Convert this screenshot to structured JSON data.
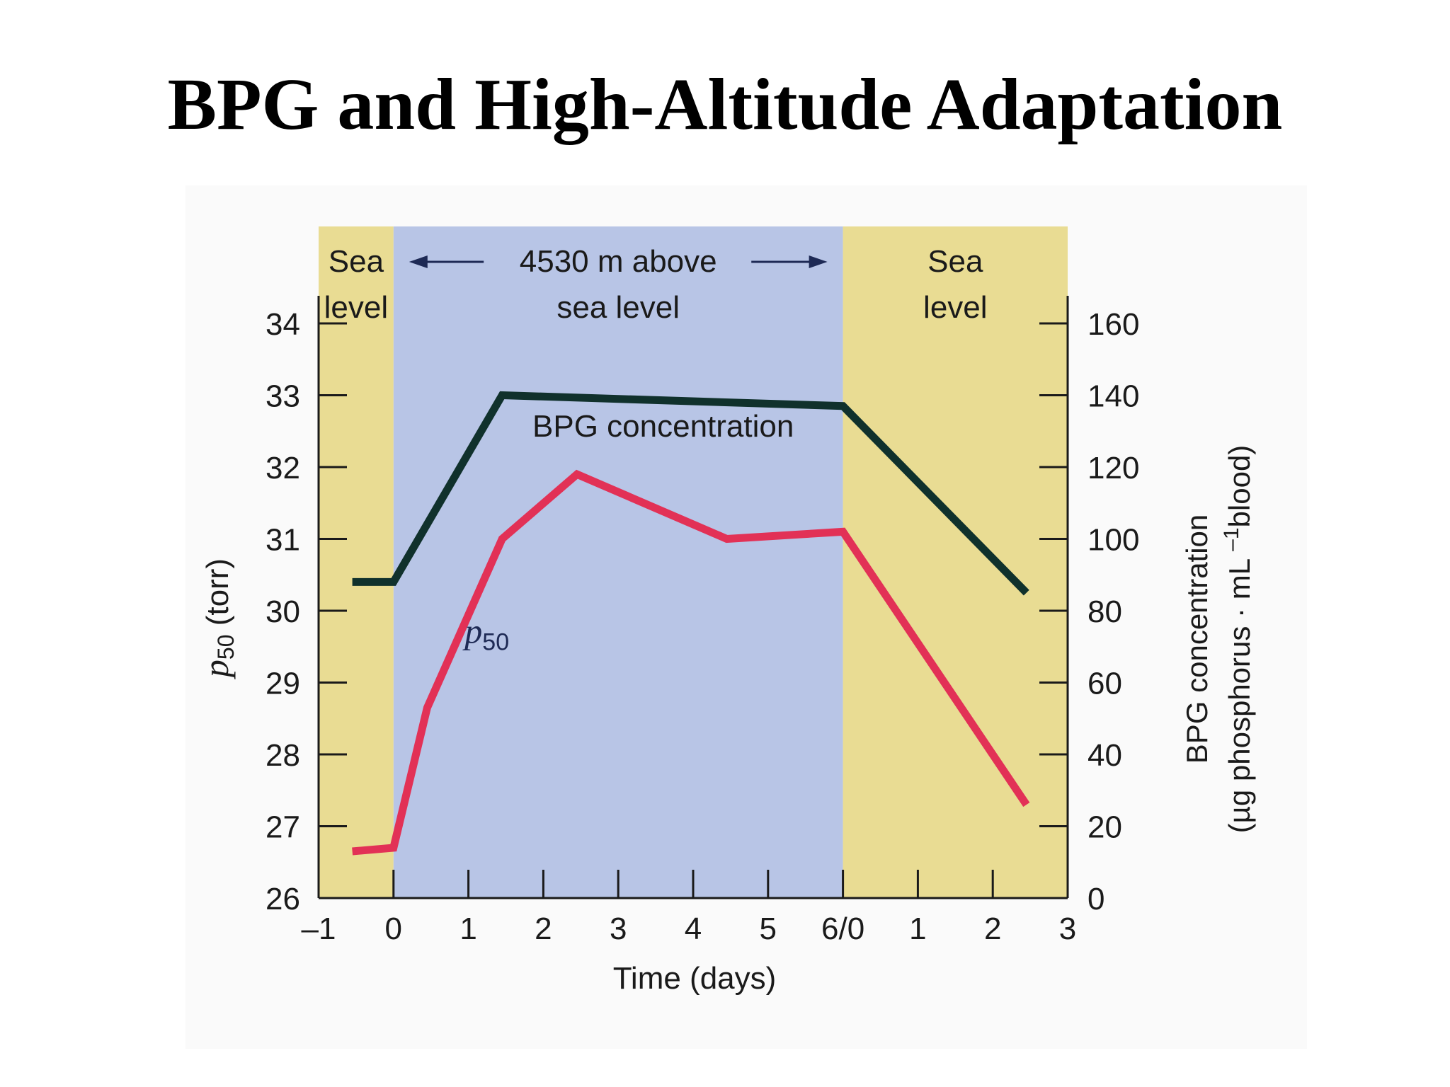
{
  "slide": {
    "title": "BPG and High-Altitude Adaptation"
  },
  "colors": {
    "sea_level_band": "#e9dc93",
    "altitude_band": "#b8c5e6",
    "bpg_line": "#10312c",
    "p50_line": "#e23156",
    "altitude_label": "#1e2a55"
  },
  "chart_data": {
    "type": "line",
    "x_tick_labels": [
      "–1",
      "0",
      "1",
      "2",
      "3",
      "4",
      "5",
      "6/0",
      "1",
      "2",
      "3"
    ],
    "x_axis_note": "continuous time axis; ticks at -1..6 during altitude stay, then 1, 2, 3 days after return to sea level",
    "xlim": [
      -1,
      9
    ],
    "xlabel": "Time (days)",
    "left_axis": {
      "label_main": "p",
      "label_sub": "50",
      "label_unit": " (torr)",
      "ylim": [
        26,
        34
      ],
      "ticks": [
        "26",
        "27",
        "28",
        "29",
        "30",
        "31",
        "32",
        "33",
        "34"
      ]
    },
    "right_axis": {
      "label_line1": "BPG concentration",
      "label_line2": "(µg phosphorus · mL –1blood)",
      "label_line2_pre": "(µg phosphorus · mL ",
      "label_line2_sup": "–1",
      "label_line2_post": "blood)",
      "ylim": [
        0,
        160
      ],
      "ticks": [
        "0",
        "20",
        "40",
        "60",
        "80",
        "100",
        "120",
        "140",
        "160"
      ]
    },
    "regions": [
      {
        "name": "sea-level-before",
        "x": [
          -1,
          0
        ],
        "label_line1": "Sea",
        "label_line2": "level"
      },
      {
        "name": "altitude",
        "x": [
          0,
          6
        ],
        "label_line1": "4530 m above",
        "label_line2": "sea level"
      },
      {
        "name": "sea-level-after",
        "x": [
          6,
          9
        ],
        "label_line1": "Sea",
        "label_line2": "level"
      }
    ],
    "series": [
      {
        "name": "BPG concentration",
        "axis": "right",
        "x": [
          -0.55,
          0.0,
          1.45,
          6.0,
          8.45
        ],
        "values": [
          88,
          88,
          140,
          137,
          85
        ]
      },
      {
        "name": "p50",
        "axis": "left",
        "x": [
          -0.55,
          0.0,
          0.45,
          1.45,
          2.45,
          4.45,
          6.0,
          8.45
        ],
        "values": [
          26.65,
          26.7,
          28.65,
          31.0,
          31.9,
          31.0,
          31.1,
          27.3
        ]
      }
    ],
    "annotations": [
      {
        "text": "BPG concentration",
        "series": "BPG concentration"
      },
      {
        "text_main": "p",
        "text_sub": "50",
        "series": "p50"
      }
    ]
  }
}
